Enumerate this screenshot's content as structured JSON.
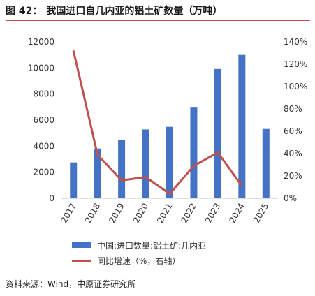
{
  "figure": {
    "label": "图 42：",
    "title": "我国进口自几内亚的铝土矿数量（万吨）",
    "source": "资料来源：Wind，中原证券研究所"
  },
  "colors": {
    "bar": "#4472c4",
    "line": "#c0504d",
    "axis": "#bfbfbf",
    "title_rule": "#c0504d"
  },
  "chart_data": {
    "type": "bar",
    "categories": [
      "2017",
      "2018",
      "2019",
      "2020",
      "2021",
      "2022",
      "2023",
      "2024",
      "2025"
    ],
    "series": [
      {
        "name": "中国:进口数量:铝土矿:几内亚",
        "type": "bar",
        "axis": "left",
        "values": [
          2750,
          3820,
          4450,
          5280,
          5480,
          7010,
          9920,
          11000,
          5320
        ]
      },
      {
        "name": "同比增速（%，右轴）",
        "type": "line",
        "axis": "right",
        "values": [
          1.32,
          0.39,
          0.16,
          0.19,
          0.04,
          0.29,
          0.41,
          0.11,
          null
        ]
      }
    ],
    "y_left": {
      "min": 0,
      "max": 12000,
      "ticks": [
        "0",
        "2000",
        "4000",
        "6000",
        "8000",
        "10000",
        "12000"
      ]
    },
    "y_right": {
      "min": 0,
      "max": 1.4,
      "ticks": [
        "0%",
        "20%",
        "40%",
        "60%",
        "80%",
        "100%",
        "120%",
        "140%"
      ]
    },
    "grid": false,
    "legend_position": "bottom"
  }
}
